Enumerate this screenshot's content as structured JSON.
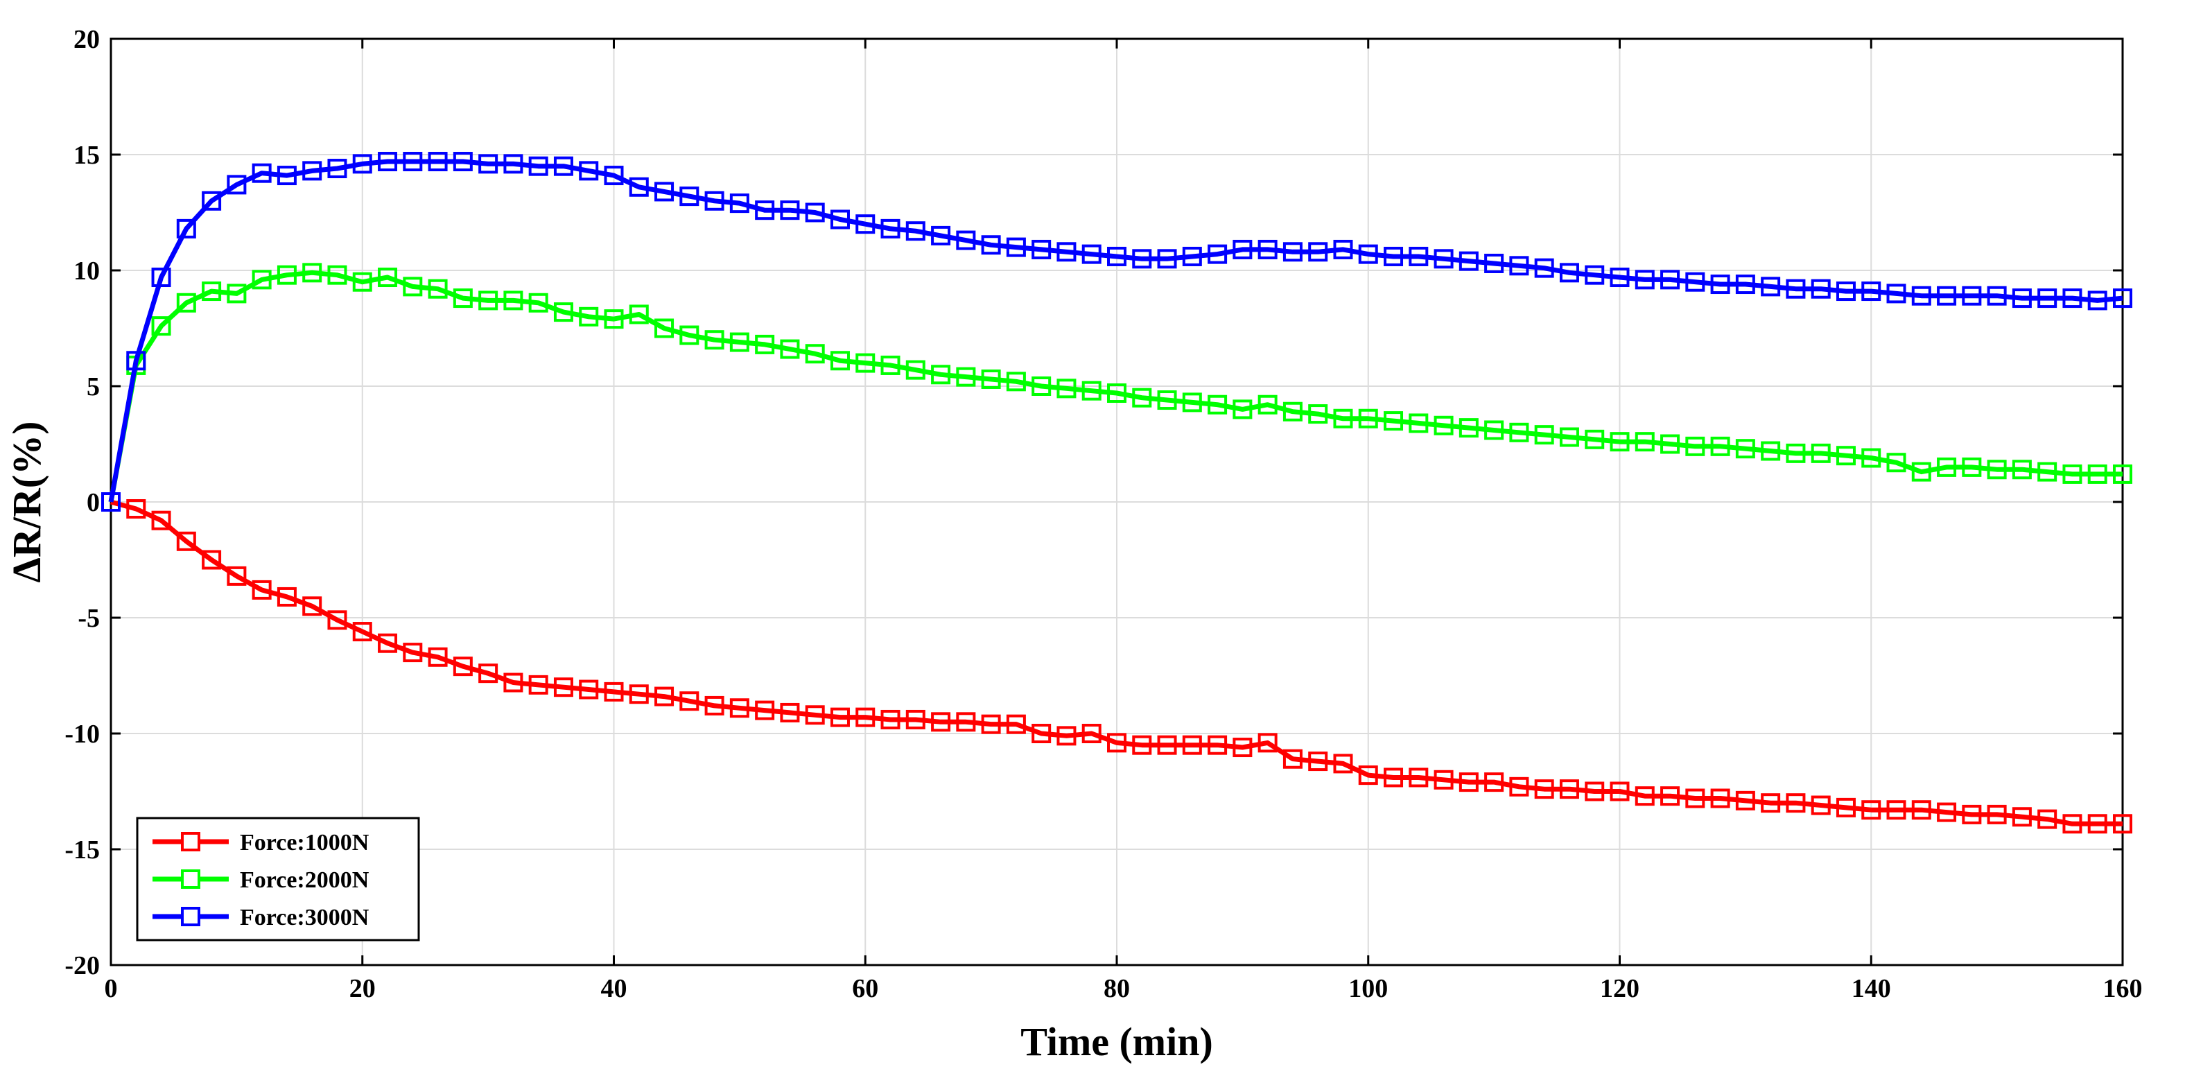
{
  "chart_data": {
    "type": "line",
    "title": "",
    "xlabel": "Time (min)",
    "ylabel": "ΔR/R(%)",
    "xlim": [
      0,
      160
    ],
    "ylim": [
      -20,
      20
    ],
    "xticks": [
      0,
      20,
      40,
      60,
      80,
      100,
      120,
      140,
      160
    ],
    "yticks": [
      -20,
      -15,
      -10,
      -5,
      0,
      5,
      10,
      15,
      20
    ],
    "grid": true,
    "legend_position": "bottom-left",
    "marker": "square",
    "x": [
      0,
      2,
      4,
      6,
      8,
      10,
      12,
      14,
      16,
      18,
      20,
      22,
      24,
      26,
      28,
      30,
      32,
      34,
      36,
      38,
      40,
      42,
      44,
      46,
      48,
      50,
      52,
      54,
      56,
      58,
      60,
      62,
      64,
      66,
      68,
      70,
      72,
      74,
      76,
      78,
      80,
      82,
      84,
      86,
      88,
      90,
      92,
      94,
      96,
      98,
      100,
      102,
      104,
      106,
      108,
      110,
      112,
      114,
      116,
      118,
      120,
      122,
      124,
      126,
      128,
      130,
      132,
      134,
      136,
      138,
      140,
      142,
      144,
      146,
      148,
      150,
      152,
      154,
      156,
      158,
      160
    ],
    "series": [
      {
        "name": "Force:1000N",
        "color": "#ff0000",
        "values": [
          0,
          -0.3,
          -0.8,
          -1.7,
          -2.5,
          -3.2,
          -3.8,
          -4.1,
          -4.5,
          -5.1,
          -5.6,
          -6.1,
          -6.5,
          -6.7,
          -7.1,
          -7.4,
          -7.8,
          -7.9,
          -8.0,
          -8.1,
          -8.2,
          -8.3,
          -8.4,
          -8.6,
          -8.8,
          -8.9,
          -9.0,
          -9.1,
          -9.2,
          -9.3,
          -9.3,
          -9.4,
          -9.4,
          -9.5,
          -9.5,
          -9.6,
          -9.6,
          -10.0,
          -10.1,
          -10.0,
          -10.4,
          -10.5,
          -10.5,
          -10.5,
          -10.5,
          -10.6,
          -10.4,
          -11.1,
          -11.2,
          -11.3,
          -11.8,
          -11.9,
          -11.9,
          -12.0,
          -12.1,
          -12.1,
          -12.3,
          -12.4,
          -12.4,
          -12.5,
          -12.5,
          -12.7,
          -12.7,
          -12.8,
          -12.8,
          -12.9,
          -13.0,
          -13.0,
          -13.1,
          -13.2,
          -13.3,
          -13.3,
          -13.3,
          -13.4,
          -13.5,
          -13.5,
          -13.6,
          -13.7,
          -13.9,
          -13.9,
          -13.9
        ]
      },
      {
        "name": "Force:2000N",
        "color": "#00ff00",
        "values": [
          0,
          5.9,
          7.6,
          8.6,
          9.1,
          9.0,
          9.6,
          9.8,
          9.9,
          9.8,
          9.5,
          9.7,
          9.3,
          9.2,
          8.8,
          8.7,
          8.7,
          8.6,
          8.2,
          8.0,
          7.9,
          8.1,
          7.5,
          7.2,
          7.0,
          6.9,
          6.8,
          6.6,
          6.4,
          6.1,
          6.0,
          5.9,
          5.7,
          5.5,
          5.4,
          5.3,
          5.2,
          5.0,
          4.9,
          4.8,
          4.7,
          4.5,
          4.4,
          4.3,
          4.2,
          4.0,
          4.2,
          3.9,
          3.8,
          3.6,
          3.6,
          3.5,
          3.4,
          3.3,
          3.2,
          3.1,
          3.0,
          2.9,
          2.8,
          2.7,
          2.6,
          2.6,
          2.5,
          2.4,
          2.4,
          2.3,
          2.2,
          2.1,
          2.1,
          2.0,
          1.9,
          1.7,
          1.3,
          1.5,
          1.5,
          1.4,
          1.4,
          1.3,
          1.2,
          1.2,
          1.2
        ]
      },
      {
        "name": "Force:3000N",
        "color": "#0000ff",
        "values": [
          0,
          6.1,
          9.7,
          11.8,
          13.0,
          13.7,
          14.2,
          14.1,
          14.3,
          14.4,
          14.6,
          14.7,
          14.7,
          14.7,
          14.7,
          14.6,
          14.6,
          14.5,
          14.5,
          14.3,
          14.1,
          13.6,
          13.4,
          13.2,
          13.0,
          12.9,
          12.6,
          12.6,
          12.5,
          12.2,
          12.0,
          11.8,
          11.7,
          11.5,
          11.3,
          11.1,
          11.0,
          10.9,
          10.8,
          10.7,
          10.6,
          10.5,
          10.5,
          10.6,
          10.7,
          10.9,
          10.9,
          10.8,
          10.8,
          10.9,
          10.7,
          10.6,
          10.6,
          10.5,
          10.4,
          10.3,
          10.2,
          10.1,
          9.9,
          9.8,
          9.7,
          9.6,
          9.6,
          9.5,
          9.4,
          9.4,
          9.3,
          9.2,
          9.2,
          9.1,
          9.1,
          9.0,
          8.9,
          8.9,
          8.9,
          8.9,
          8.8,
          8.8,
          8.8,
          8.7,
          8.8
        ]
      }
    ]
  }
}
